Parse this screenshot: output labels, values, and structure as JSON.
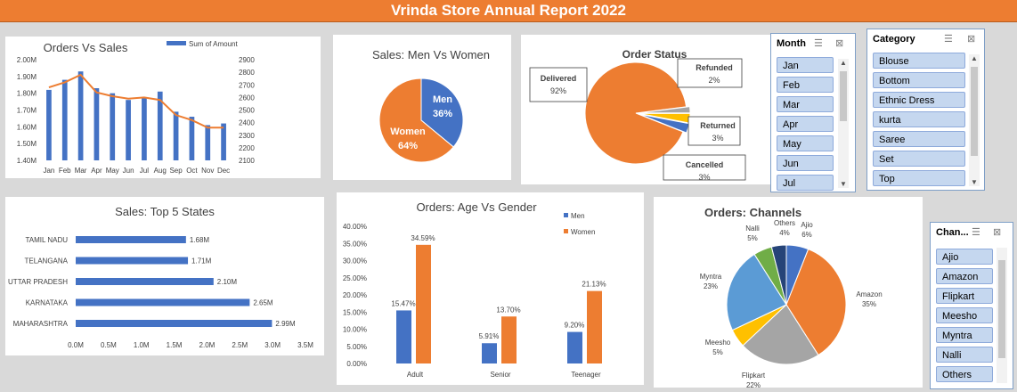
{
  "report_title": "Vrinda Store Annual Report 2022",
  "colors": {
    "blue": "#4472c4",
    "orange": "#ed7d31",
    "gray": "#a5a5a5",
    "yellow": "#ffc000",
    "lightblue": "#5b9bd5",
    "green": "#70ad47",
    "navy": "#264478"
  },
  "slicers": {
    "month": {
      "title": "Month",
      "items": [
        "Jan",
        "Feb",
        "Mar",
        "Apr",
        "May",
        "Jun",
        "Jul"
      ]
    },
    "category": {
      "title": "Category",
      "items": [
        "Blouse",
        "Bottom",
        "Ethnic Dress",
        "kurta",
        "Saree",
        "Set",
        "Top"
      ]
    },
    "channel": {
      "title": "Chan...",
      "items": [
        "Ajio",
        "Amazon",
        "Flipkart",
        "Meesho",
        "Myntra",
        "Nalli",
        "Others"
      ]
    }
  },
  "chart_data": [
    {
      "id": "orders_vs_sales",
      "type": "bar",
      "title": "Orders Vs Sales",
      "categories": [
        "Jan",
        "Feb",
        "Mar",
        "Apr",
        "May",
        "Jun",
        "Jul",
        "Aug",
        "Sep",
        "Oct",
        "Nov",
        "Dec"
      ],
      "series": [
        {
          "name": "Sum of Amount",
          "type": "bar",
          "axis": "left",
          "values": [
            1.82,
            1.88,
            1.93,
            1.83,
            1.8,
            1.76,
            1.77,
            1.81,
            1.69,
            1.66,
            1.61,
            1.62
          ]
        },
        {
          "type": "line",
          "axis": "right",
          "values": [
            2680,
            2720,
            2780,
            2640,
            2610,
            2590,
            2600,
            2580,
            2460,
            2420,
            2360,
            2360
          ]
        }
      ],
      "y_ticks_left": [
        "2.00M",
        "1.90M",
        "1.80M",
        "1.70M",
        "1.60M",
        "1.50M",
        "1.40M"
      ],
      "y_ticks_right": [
        "2900",
        "2800",
        "2700",
        "2600",
        "2500",
        "2400",
        "2300",
        "2200",
        "2100"
      ],
      "ylim_left": [
        1.4,
        2.0
      ],
      "ylim_right": [
        2100,
        2900
      ],
      "legend": "top"
    },
    {
      "id": "sales_men_women",
      "type": "pie",
      "title": "Sales: Men Vs Women",
      "slices": [
        {
          "label": "Men",
          "value": 36,
          "text": "36%"
        },
        {
          "label": "Women",
          "value": 64,
          "text": "64%"
        }
      ]
    },
    {
      "id": "order_status",
      "type": "pie",
      "title": "Order Status",
      "slices": [
        {
          "label": "Delivered",
          "value": 92,
          "text": "92%"
        },
        {
          "label": "Refunded",
          "value": 2,
          "text": "2%"
        },
        {
          "label": "Returned",
          "value": 3,
          "text": "3%"
        },
        {
          "label": "Cancelled",
          "value": 3,
          "text": "3%"
        }
      ]
    },
    {
      "id": "top_states",
      "type": "bar",
      "orientation": "horizontal",
      "title": "Sales: Top 5 States",
      "categories": [
        "TAMIL NADU",
        "TELANGANA",
        "UTTAR PRADESH",
        "KARNATAKA",
        "MAHARASHTRA"
      ],
      "values": [
        1.68,
        1.71,
        2.1,
        2.65,
        2.99
      ],
      "labels": [
        "1.68M",
        "1.71M",
        "2.10M",
        "2.65M",
        "2.99M"
      ],
      "x_ticks": [
        "0.0M",
        "0.5M",
        "1.0M",
        "1.5M",
        "2.0M",
        "2.5M",
        "3.0M",
        "3.5M"
      ],
      "xlim": [
        0,
        3.5
      ]
    },
    {
      "id": "age_vs_gender",
      "type": "bar",
      "title": "Orders: Age Vs Gender",
      "categories": [
        "Adult",
        "Senior",
        "Teenager"
      ],
      "series": [
        {
          "name": "Men",
          "values": [
            15.47,
            5.91,
            9.2
          ],
          "labels": [
            "15.47%",
            "5.91%",
            "9.20%"
          ]
        },
        {
          "name": "Women",
          "values": [
            34.59,
            13.7,
            21.13
          ],
          "labels": [
            "34.59%",
            "13.70%",
            "21.13%"
          ]
        }
      ],
      "y_ticks": [
        "40.00%",
        "35.00%",
        "30.00%",
        "25.00%",
        "20.00%",
        "15.00%",
        "10.00%",
        "5.00%",
        "0.00%"
      ],
      "ylim": [
        0,
        40
      ],
      "legend": "top-right"
    },
    {
      "id": "channels",
      "type": "pie",
      "title": "Orders: Channels",
      "slices": [
        {
          "label": "Ajio",
          "value": 6,
          "text": "6%"
        },
        {
          "label": "Amazon",
          "value": 35,
          "text": "35%"
        },
        {
          "label": "Flipkart",
          "value": 22,
          "text": "22%"
        },
        {
          "label": "Meesho",
          "value": 5,
          "text": "5%"
        },
        {
          "label": "Myntra",
          "value": 23,
          "text": "23%"
        },
        {
          "label": "Nalli",
          "value": 5,
          "text": "5%"
        },
        {
          "label": "Others",
          "value": 4,
          "text": "4%"
        }
      ]
    }
  ]
}
